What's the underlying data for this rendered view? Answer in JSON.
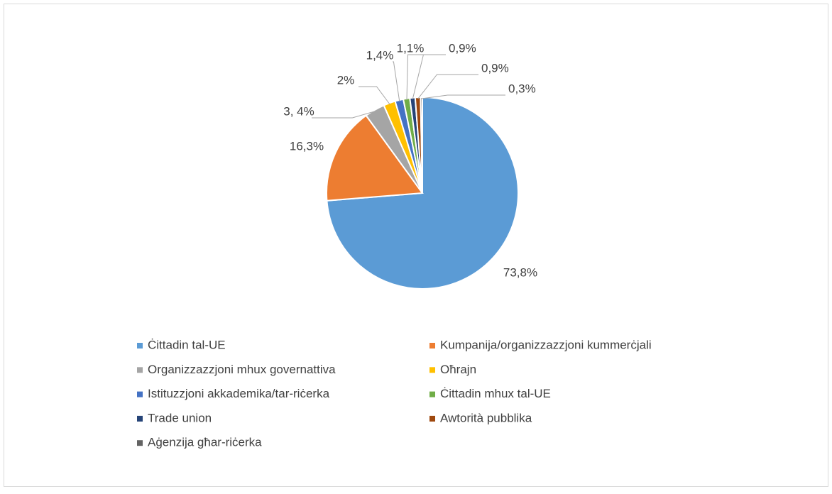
{
  "chart_data": {
    "type": "pie",
    "categories": [
      "Ċittadin tal-UE",
      "Kumpanija/organizzazzjoni kummerċjali",
      "Organizzazzjoni mhux governattiva",
      "Oħrajn",
      "Istituzzjoni akkademika/tar-riċerka",
      "Ċittadin mhux tal-UE",
      "Trade union",
      "Awtorità pubblika",
      "Aġenzija għar-riċerka"
    ],
    "values": [
      73.8,
      16.3,
      3.4,
      2,
      1.4,
      1.1,
      0.9,
      0.9,
      0.3
    ],
    "value_labels": [
      "73,8%",
      "16,3%",
      "3, 4%",
      "2%",
      "1,4%",
      "1,1%",
      "0,9%",
      "0,9%",
      "0,3%"
    ],
    "colors": [
      "#5b9bd5",
      "#ed7d31",
      "#a5a5a5",
      "#ffc000",
      "#4472c4",
      "#70ad47",
      "#264478",
      "#9e480e",
      "#636363"
    ]
  }
}
